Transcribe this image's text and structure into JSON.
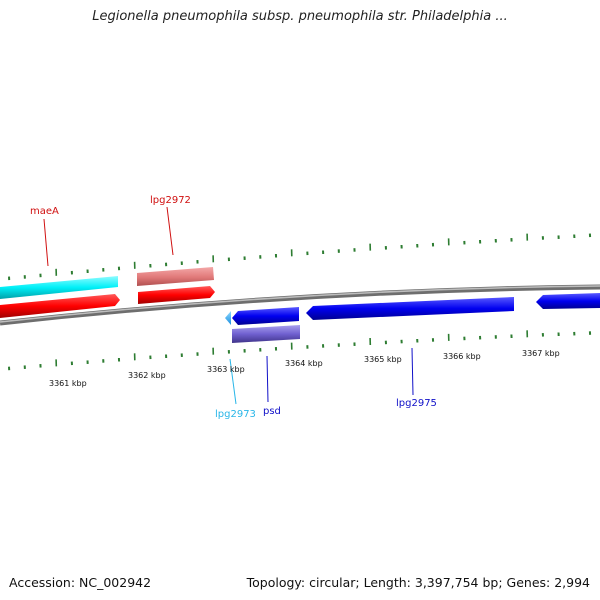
{
  "title": "Legionella pneumophila subsp. pneumophila str. Philadelphia ...",
  "footer": {
    "accession": "Accession: NC_002942",
    "topology": "Topology: circular; Length: 3,397,754 bp; Genes: 2,994"
  },
  "colors": {
    "backbone": "#8a8a8a",
    "tick": "#2e7d32",
    "red_gene": "#e01010",
    "pink_gene": "#e88080",
    "cyan_gene": "#10e6ee",
    "light_blue_gene": "#2aa8f0",
    "blue_gene": "#0c0ce8",
    "purple_gene": "#6a5acd"
  },
  "ticks": [
    {
      "label": "3361 kbp"
    },
    {
      "label": "3362 kbp"
    },
    {
      "label": "3363 kbp"
    },
    {
      "label": "3364 kbp"
    },
    {
      "label": "3365 kbp"
    },
    {
      "label": "3366 kbp"
    },
    {
      "label": "3367 kbp"
    }
  ],
  "genes": [
    {
      "name": "maeA",
      "color": "#d01010"
    },
    {
      "name": "lpg2972",
      "color": "#d01010"
    },
    {
      "name": "lpg2973",
      "color": "#29b6e8"
    },
    {
      "name": "psd",
      "color": "#1010c8"
    },
    {
      "name": "lpg2975",
      "color": "#1010c8"
    }
  ]
}
